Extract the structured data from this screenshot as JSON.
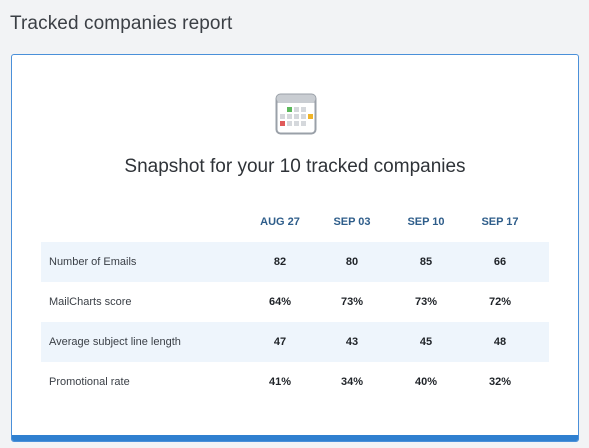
{
  "page": {
    "title": "Tracked companies report"
  },
  "report": {
    "snapshot_title": "Snapshot for your 10 tracked companies",
    "icon": "calendar-icon",
    "columns": [
      "AUG 27",
      "SEP 03",
      "SEP 10",
      "SEP 17"
    ],
    "rows": [
      {
        "label": "Number of Emails",
        "values": [
          "82",
          "80",
          "85",
          "66"
        ]
      },
      {
        "label": "MailCharts score",
        "values": [
          "64%",
          "73%",
          "73%",
          "72%"
        ]
      },
      {
        "label": "Average subject line length",
        "values": [
          "47",
          "43",
          "45",
          "48"
        ]
      },
      {
        "label": "Promotional rate",
        "values": [
          "41%",
          "34%",
          "40%",
          "32%"
        ]
      }
    ]
  },
  "colors": {
    "accent": "#2f80d0",
    "header_text": "#2e5d8a",
    "row_alt": "#eef5fc",
    "icon_green": "#5cb85c",
    "icon_red": "#e05a5a",
    "icon_yellow": "#f0b429"
  }
}
